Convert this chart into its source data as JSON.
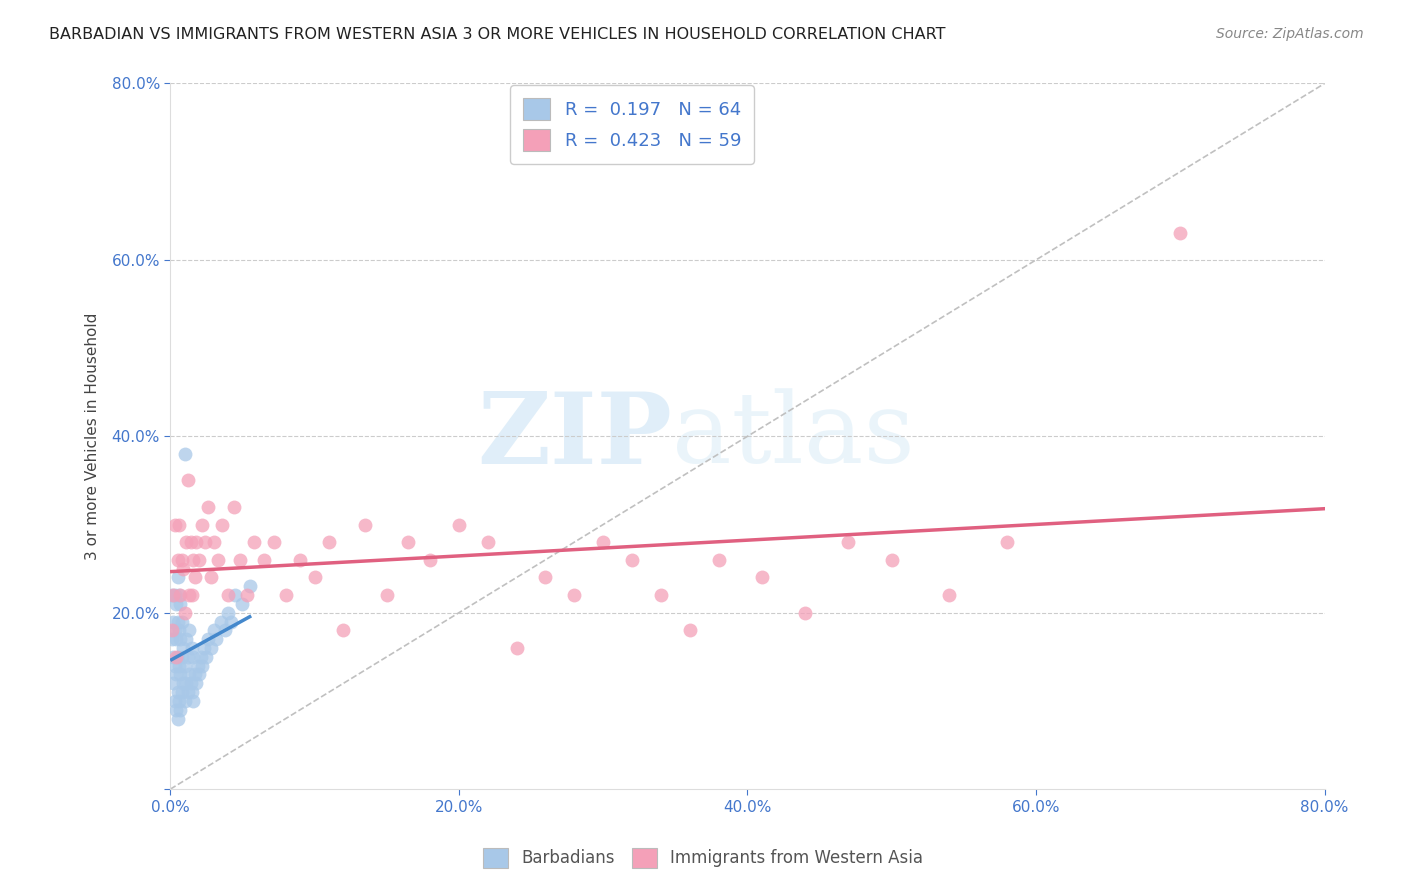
{
  "title": "BARBADIAN VS IMMIGRANTS FROM WESTERN ASIA 3 OR MORE VEHICLES IN HOUSEHOLD CORRELATION CHART",
  "source": "Source: ZipAtlas.com",
  "ylabel": "3 or more Vehicles in Household",
  "xlim": [
    0.0,
    0.8
  ],
  "ylim": [
    0.0,
    0.8
  ],
  "xticks": [
    0.0,
    0.2,
    0.4,
    0.6,
    0.8
  ],
  "yticks": [
    0.0,
    0.2,
    0.4,
    0.6,
    0.8
  ],
  "xticklabels": [
    "0.0%",
    "20.0%",
    "40.0%",
    "60.0%",
    "80.0%"
  ],
  "yticklabels": [
    "",
    "20.0%",
    "40.0%",
    "60.0%",
    "80.0%"
  ],
  "grid_color": "#cccccc",
  "background_color": "#ffffff",
  "watermark_zip": "ZIP",
  "watermark_atlas": "atlas",
  "blue_R": 0.197,
  "blue_N": 64,
  "pink_R": 0.423,
  "pink_N": 59,
  "blue_color": "#a8c8e8",
  "pink_color": "#f4a0b8",
  "blue_line_color": "#4488cc",
  "pink_line_color": "#e06080",
  "diagonal_color": "#c0c0c0",
  "legend_text_color": "#4477cc",
  "blue_scatter_x": [
    0.001,
    0.001,
    0.002,
    0.002,
    0.002,
    0.003,
    0.003,
    0.003,
    0.003,
    0.004,
    0.004,
    0.004,
    0.004,
    0.005,
    0.005,
    0.005,
    0.005,
    0.005,
    0.006,
    0.006,
    0.006,
    0.006,
    0.007,
    0.007,
    0.007,
    0.007,
    0.008,
    0.008,
    0.008,
    0.009,
    0.009,
    0.01,
    0.01,
    0.01,
    0.011,
    0.011,
    0.012,
    0.012,
    0.013,
    0.013,
    0.014,
    0.015,
    0.015,
    0.016,
    0.016,
    0.017,
    0.018,
    0.019,
    0.02,
    0.021,
    0.022,
    0.023,
    0.025,
    0.026,
    0.028,
    0.03,
    0.032,
    0.035,
    0.038,
    0.04,
    0.042,
    0.045,
    0.05,
    0.055
  ],
  "blue_scatter_y": [
    0.17,
    0.22,
    0.12,
    0.15,
    0.19,
    0.1,
    0.14,
    0.18,
    0.22,
    0.09,
    0.13,
    0.17,
    0.21,
    0.08,
    0.11,
    0.15,
    0.19,
    0.24,
    0.1,
    0.14,
    0.18,
    0.22,
    0.09,
    0.13,
    0.17,
    0.21,
    0.11,
    0.15,
    0.19,
    0.12,
    0.16,
    0.1,
    0.14,
    0.38,
    0.12,
    0.17,
    0.11,
    0.15,
    0.13,
    0.18,
    0.12,
    0.11,
    0.16,
    0.1,
    0.15,
    0.13,
    0.12,
    0.14,
    0.13,
    0.15,
    0.14,
    0.16,
    0.15,
    0.17,
    0.16,
    0.18,
    0.17,
    0.19,
    0.18,
    0.2,
    0.19,
    0.22,
    0.21,
    0.23
  ],
  "pink_scatter_x": [
    0.001,
    0.002,
    0.003,
    0.004,
    0.005,
    0.006,
    0.007,
    0.008,
    0.009,
    0.01,
    0.011,
    0.012,
    0.013,
    0.014,
    0.015,
    0.016,
    0.017,
    0.018,
    0.02,
    0.022,
    0.024,
    0.026,
    0.028,
    0.03,
    0.033,
    0.036,
    0.04,
    0.044,
    0.048,
    0.053,
    0.058,
    0.065,
    0.072,
    0.08,
    0.09,
    0.1,
    0.11,
    0.12,
    0.135,
    0.15,
    0.165,
    0.18,
    0.2,
    0.22,
    0.24,
    0.26,
    0.28,
    0.3,
    0.32,
    0.34,
    0.36,
    0.38,
    0.41,
    0.44,
    0.47,
    0.5,
    0.54,
    0.58,
    0.7
  ],
  "pink_scatter_y": [
    0.18,
    0.22,
    0.3,
    0.15,
    0.26,
    0.3,
    0.22,
    0.26,
    0.25,
    0.2,
    0.28,
    0.35,
    0.22,
    0.28,
    0.22,
    0.26,
    0.24,
    0.28,
    0.26,
    0.3,
    0.28,
    0.32,
    0.24,
    0.28,
    0.26,
    0.3,
    0.22,
    0.32,
    0.26,
    0.22,
    0.28,
    0.26,
    0.28,
    0.22,
    0.26,
    0.24,
    0.28,
    0.18,
    0.3,
    0.22,
    0.28,
    0.26,
    0.3,
    0.28,
    0.16,
    0.24,
    0.22,
    0.28,
    0.26,
    0.22,
    0.18,
    0.26,
    0.24,
    0.2,
    0.28,
    0.26,
    0.22,
    0.28,
    0.63
  ]
}
